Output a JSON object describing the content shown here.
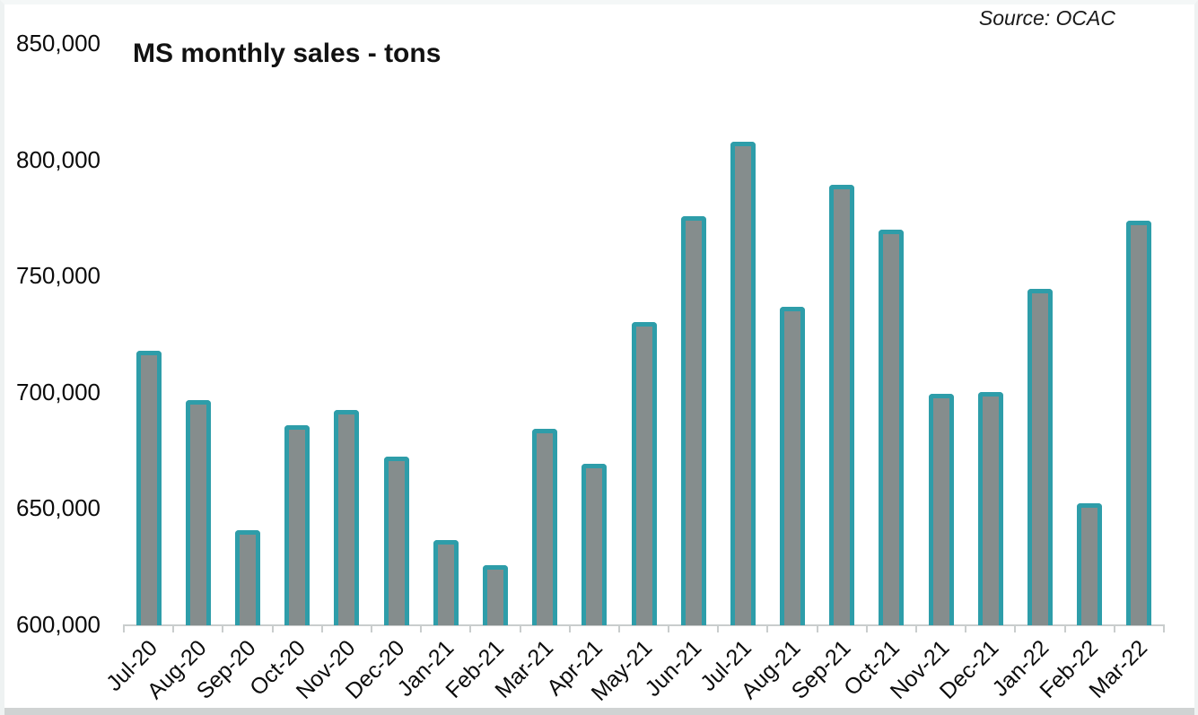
{
  "header": {
    "title": "MS monthly sales - tons",
    "source": "Source: OCAC"
  },
  "chart_data": {
    "type": "bar",
    "title": "MS monthly sales - tons",
    "source": "Source: OCAC",
    "categories": [
      "Jul-20",
      "Aug-20",
      "Sep-20",
      "Oct-20",
      "Nov-20",
      "Dec-20",
      "Jan-21",
      "Feb-21",
      "Mar-21",
      "Apr-21",
      "May-21",
      "Jun-21",
      "Jul-21",
      "Aug-21",
      "Sep-21",
      "Oct-21",
      "Nov-21",
      "Dec-21",
      "Jan-22",
      "Feb-22",
      "Mar-22"
    ],
    "values": [
      718000,
      697000,
      641000,
      686000,
      692500,
      672500,
      636500,
      626000,
      684500,
      669500,
      730500,
      776000,
      808000,
      737000,
      789500,
      770000,
      699500,
      700500,
      744500,
      652500,
      774000
    ],
    "ylim": [
      600000,
      850000
    ],
    "yticks": [
      600000,
      650000,
      700000,
      750000,
      800000,
      850000
    ],
    "ylabel": "",
    "xlabel": "",
    "grid": false,
    "legend": false,
    "colors": {
      "bar_fill": "#858d8d",
      "bar_border": "#2e9da9",
      "axis": "#c9cdcd",
      "text": "#0c0c0c",
      "bottom_strip": "#d0d3d3"
    }
  }
}
